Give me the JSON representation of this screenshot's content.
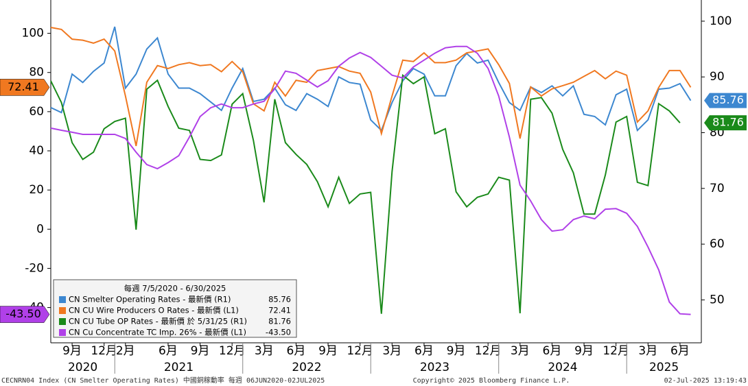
{
  "chart_data": {
    "type": "line",
    "legend_title": "每週 7/5/2020 - 6/30/2025",
    "x": [
      "2020-07",
      "2020-08",
      "2020-09",
      "2020-10",
      "2020-11",
      "2020-12",
      "2021-01",
      "2021-02",
      "2021-03",
      "2021-04",
      "2021-05",
      "2021-06",
      "2021-07",
      "2021-08",
      "2021-09",
      "2021-10",
      "2021-11",
      "2021-12",
      "2022-01",
      "2022-02",
      "2022-03",
      "2022-04",
      "2022-05",
      "2022-06",
      "2022-07",
      "2022-08",
      "2022-09",
      "2022-10",
      "2022-11",
      "2022-12",
      "2023-01",
      "2023-02",
      "2023-03",
      "2023-04",
      "2023-05",
      "2023-06",
      "2023-07",
      "2023-08",
      "2023-09",
      "2023-10",
      "2023-11",
      "2023-12",
      "2024-01",
      "2024-02",
      "2024-03",
      "2024-04",
      "2024-05",
      "2024-06",
      "2024-07",
      "2024-08",
      "2024-09",
      "2024-10",
      "2024-11",
      "2024-12",
      "2025-01",
      "2025-02",
      "2025-03",
      "2025-04",
      "2025-05",
      "2025-06",
      "2025-07"
    ],
    "xlim": [
      "2020-07",
      "2025-08"
    ],
    "xticks": [
      {
        "value": "2020-09",
        "label": "9月"
      },
      {
        "value": "2020-12",
        "label": "12月"
      },
      {
        "value": "2021-02",
        "label": "2月"
      },
      {
        "value": "2021-06",
        "label": "6月"
      },
      {
        "value": "2021-09",
        "label": "9月"
      },
      {
        "value": "2021-12",
        "label": "12月"
      },
      {
        "value": "2022-03",
        "label": "3月"
      },
      {
        "value": "2022-06",
        "label": "6月"
      },
      {
        "value": "2022-09",
        "label": "9月"
      },
      {
        "value": "2022-12",
        "label": "12月"
      },
      {
        "value": "2023-03",
        "label": "3月"
      },
      {
        "value": "2023-06",
        "label": "6月"
      },
      {
        "value": "2023-09",
        "label": "9月"
      },
      {
        "value": "2023-12",
        "label": "12月"
      },
      {
        "value": "2024-03",
        "label": "3月"
      },
      {
        "value": "2024-06",
        "label": "6月"
      },
      {
        "value": "2024-09",
        "label": "9月"
      },
      {
        "value": "2024-12",
        "label": "12月"
      },
      {
        "value": "2025-03",
        "label": "3月"
      },
      {
        "value": "2025-06",
        "label": "6月"
      }
    ],
    "years": [
      2020,
      2021,
      2022,
      2023,
      2024,
      2025
    ],
    "ylim": [
      -58,
      117
    ],
    "yticks": [
      -40,
      -20,
      0,
      20,
      40,
      60,
      80,
      100
    ],
    "y2lim": [
      42.3,
      103.8
    ],
    "y2ticks": [
      50,
      60,
      70,
      80,
      90,
      100
    ],
    "series": [
      {
        "name": "CN Smelter Operating Rates - 最新價 (R1)",
        "color": "#3c87d0",
        "axis": "y2",
        "last_value": 85.76,
        "values": [
          84.5,
          83.6,
          90.5,
          89,
          91,
          92.5,
          99,
          88,
          90.5,
          95,
          97,
          90.5,
          88,
          88,
          87,
          85.5,
          84,
          88,
          91.5,
          85.6,
          86,
          88,
          85,
          84,
          87,
          86,
          84.7,
          90,
          89,
          88.7,
          82.3,
          80.4,
          85.4,
          89.3,
          91.5,
          90.5,
          86.6,
          86.6,
          92,
          94.2,
          92.5,
          93,
          89,
          85.4,
          84,
          88.2,
          87.2,
          88.4,
          86.6,
          88.4,
          83.3,
          82.9,
          81.4,
          86.8,
          87.8,
          80.4,
          82.3,
          87.8,
          88,
          88.8,
          85.76
        ]
      },
      {
        "name": "CN CU Wire Producers O Rates - 最新價 (L1)",
        "color": "#f07820",
        "axis": "y",
        "last_value": 72.41,
        "values": [
          103,
          102,
          97,
          96.5,
          95,
          97,
          91,
          68,
          42.5,
          75,
          83.5,
          82,
          84,
          85,
          83.5,
          84,
          80.4,
          85.6,
          80.4,
          64,
          60.4,
          75,
          68,
          76,
          75,
          81,
          82,
          83,
          80.7,
          79.6,
          70,
          48.8,
          68,
          86.3,
          85.6,
          90,
          85,
          85,
          86.3,
          90,
          91,
          92,
          84,
          74.4,
          46.3,
          72.6,
          68,
          71.6,
          73.3,
          75,
          78,
          81,
          76.8,
          80.7,
          78.6,
          54.7,
          60.4,
          72.3,
          81,
          81,
          72.41
        ]
      },
      {
        "name": "CN CU Tube OP Rates - 最新價 於 5/31/25 (R1)",
        "color": "#1a8a1a",
        "axis": "y2",
        "last_value": 81.76,
        "values": [
          89.3,
          85.4,
          78.2,
          75.2,
          76.5,
          80.7,
          82,
          82.6,
          62.6,
          87.8,
          89.4,
          84.7,
          80.8,
          80.4,
          75.2,
          75,
          76,
          85.1,
          87,
          78.6,
          67.5,
          86,
          78.2,
          76.1,
          74.3,
          71.2,
          66.7,
          72,
          67.3,
          69,
          69.3,
          47.5,
          73,
          90.3,
          88.8,
          90,
          79.8,
          80.7,
          69.4,
          66.7,
          68.4,
          69,
          72,
          71.5,
          47.6,
          86,
          86.3,
          83.5,
          77,
          72.8,
          65.4,
          65.4,
          72.4,
          81.9,
          82.9,
          71.1,
          70.5,
          85.2,
          83.9,
          81.76,
          null
        ]
      },
      {
        "name": "CN Cu Concentrate TC Imp. 26% - 最新價 (L1)",
        "color": "#b040e8",
        "axis": "y",
        "last_value": -43.5,
        "last_value_label": "-43.50",
        "values": [
          51.6,
          50.5,
          49.5,
          48.4,
          48.4,
          48.4,
          48.4,
          46.3,
          39.3,
          33,
          30.9,
          34,
          37.5,
          47,
          57.5,
          62,
          63.9,
          62,
          62,
          63.9,
          65.3,
          71.6,
          80.7,
          79.6,
          76.1,
          72.6,
          75.8,
          83.2,
          87.4,
          90.2,
          87.7,
          83.2,
          78.6,
          77.2,
          82.8,
          86.3,
          89.8,
          92.6,
          93.3,
          93.3,
          89.8,
          82.1,
          68,
          47,
          22.5,
          14.4,
          4.9,
          -1,
          -0.3,
          4.9,
          6.7,
          5.3,
          10.2,
          10.5,
          8.1,
          1.4,
          -9.1,
          -20.7,
          -37.2,
          -43.2,
          -43.5
        ]
      }
    ],
    "footer": {
      "left": "CECNRN04 Index (CN Smelter Operating Rates) 中國銅稼動率  每週 06JUN2020-02JUL2025",
      "center": "Copyright© 2025 Bloomberg Finance L.P.",
      "right": "02-Jul-2025 13:19:43"
    }
  }
}
